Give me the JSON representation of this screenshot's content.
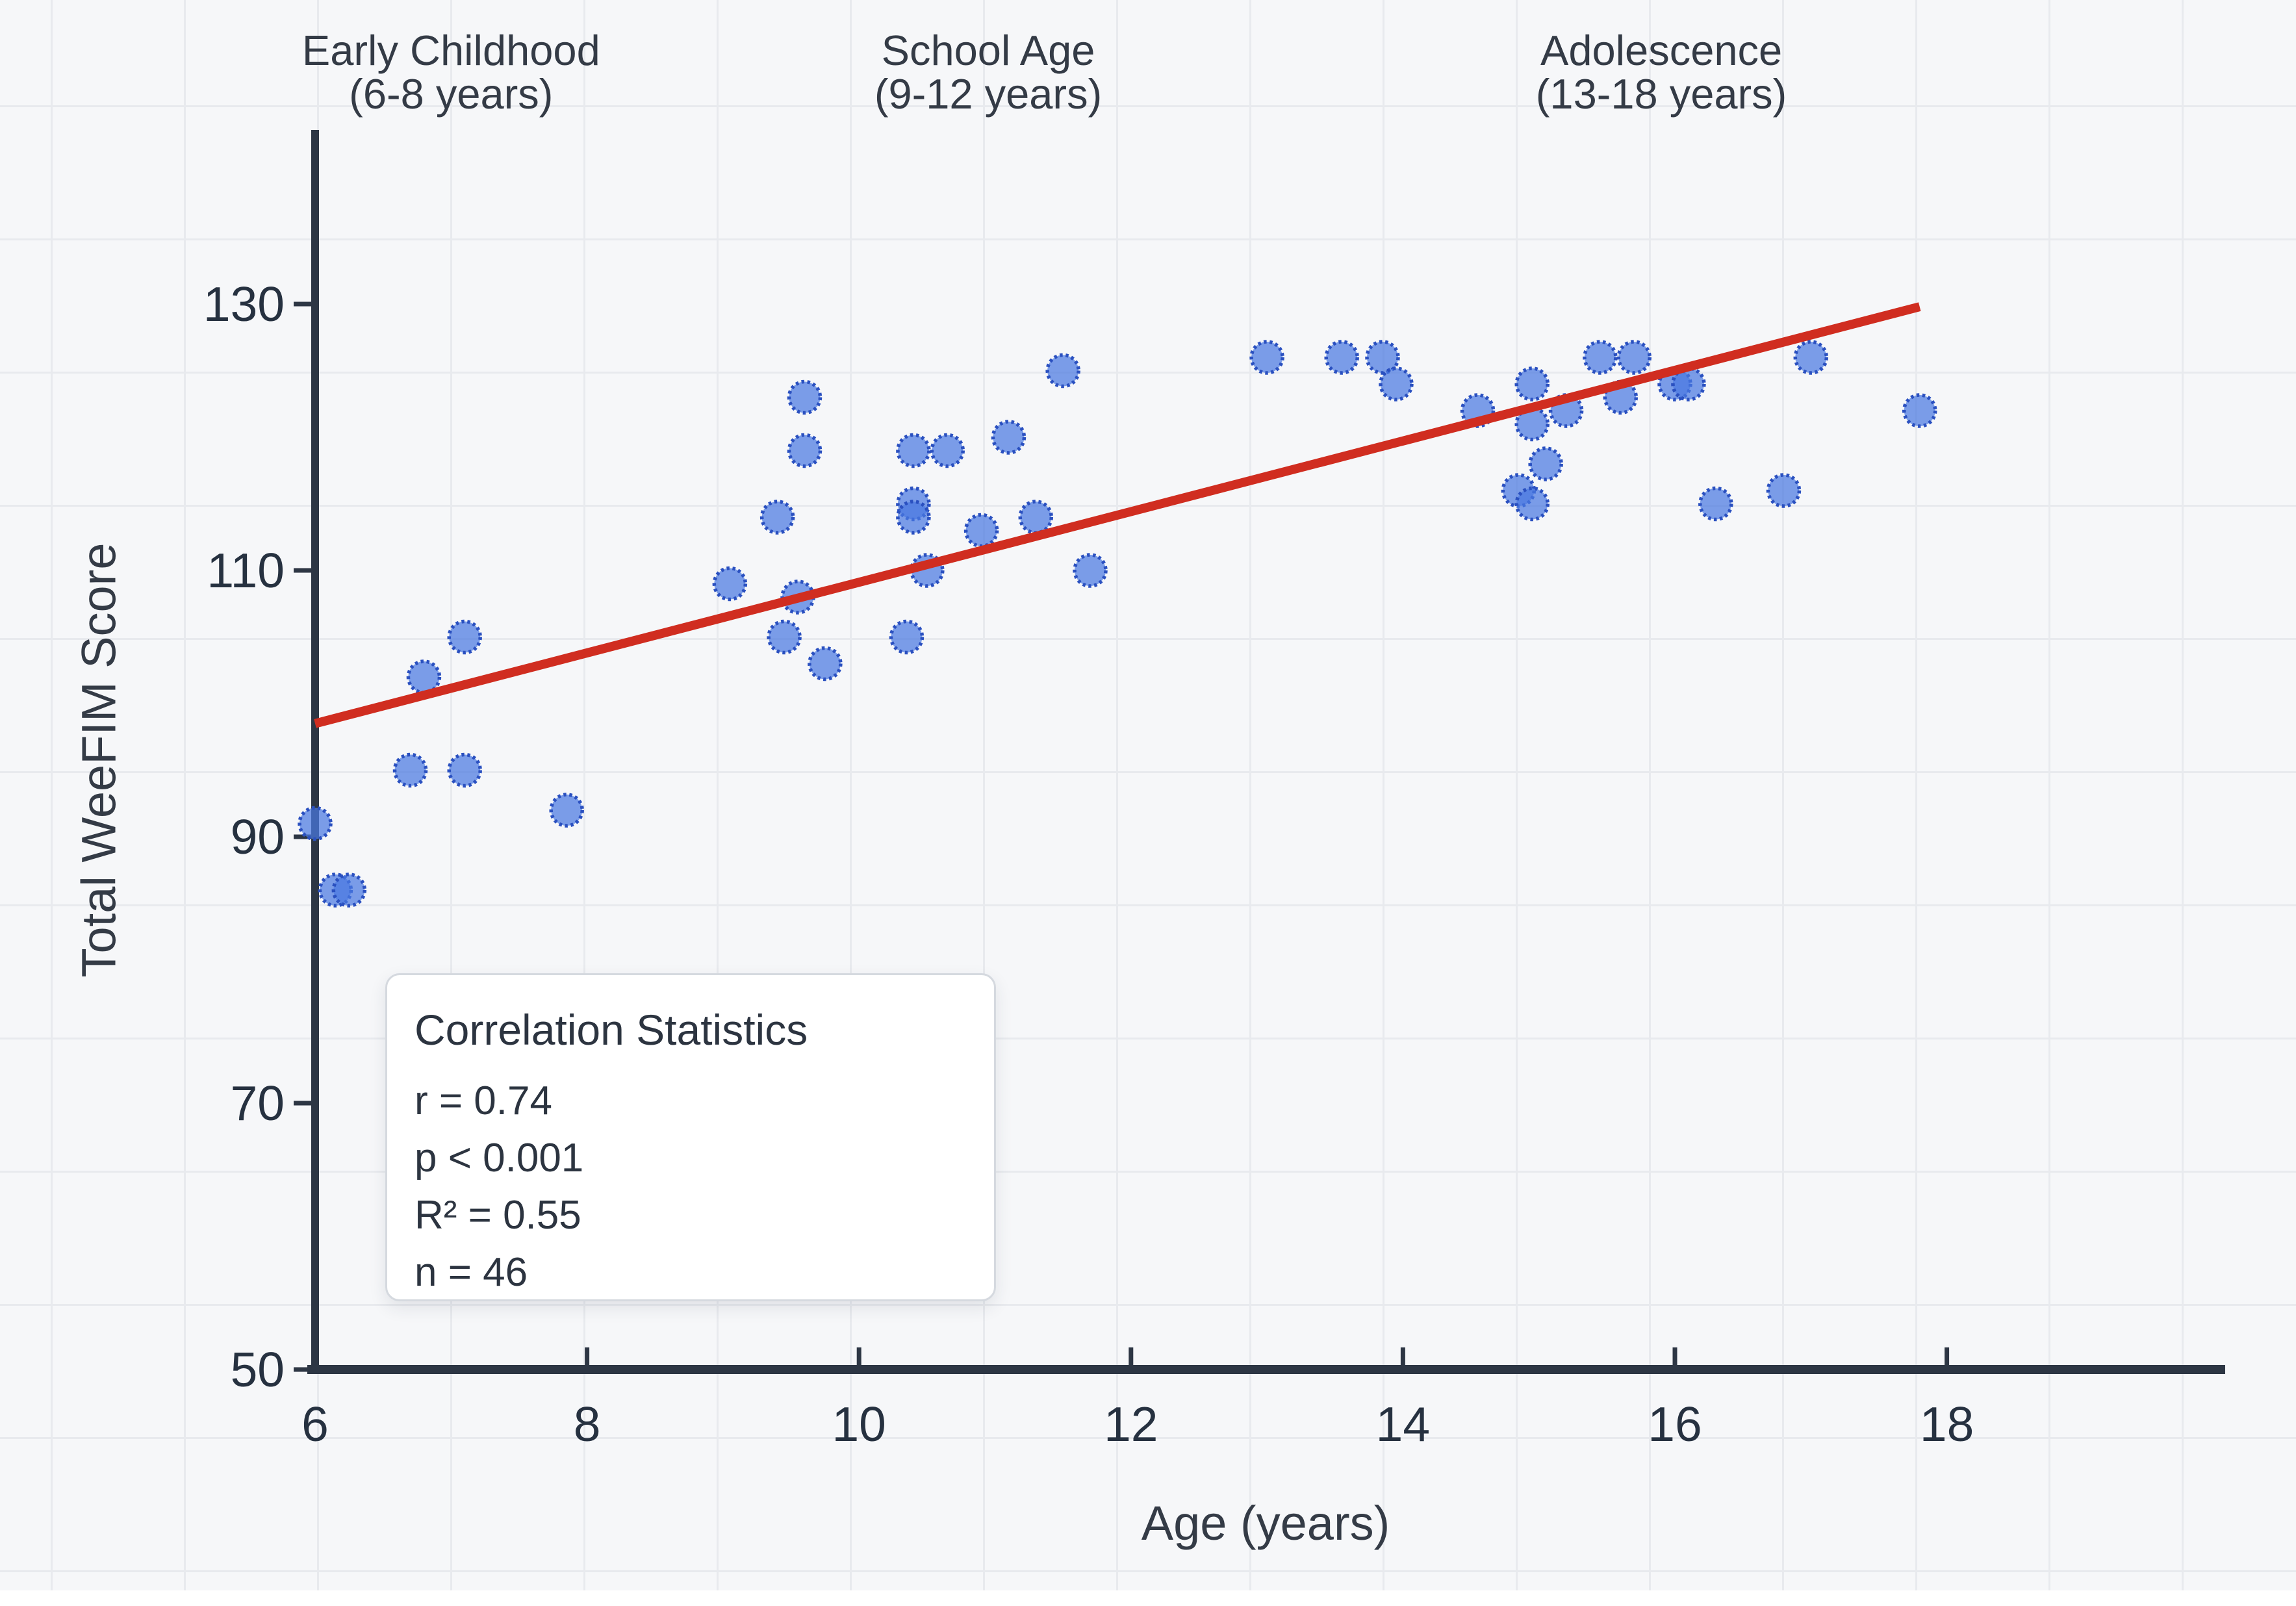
{
  "chart_data": {
    "type": "scatter",
    "xlabel": "Age (years)",
    "ylabel": "Total WeeFIM Score",
    "xlim": [
      6,
      20
    ],
    "ylim": [
      50,
      144
    ],
    "x_ticks": [
      6,
      8,
      10,
      12,
      14,
      16,
      18
    ],
    "y_ticks": [
      50,
      70,
      90,
      110,
      130
    ],
    "legend_position": "none",
    "grid": "decorative full-canvas light grid, not aligned to ticks",
    "age_groups": [
      {
        "line1": "Early Childhood",
        "line2": "(6-8 years)",
        "center_age": 7.0
      },
      {
        "line1": "School Age",
        "line2": "(9-12 years)",
        "center_age": 10.95
      },
      {
        "line1": "Adolescence",
        "line2": "(13-18 years)",
        "center_age": 15.9
      }
    ],
    "points": [
      {
        "age": 6.0,
        "score": 91
      },
      {
        "age": 6.15,
        "score": 86
      },
      {
        "age": 6.25,
        "score": 86
      },
      {
        "age": 6.7,
        "score": 95
      },
      {
        "age": 6.8,
        "score": 102
      },
      {
        "age": 7.1,
        "score": 105
      },
      {
        "age": 7.1,
        "score": 95
      },
      {
        "age": 7.85,
        "score": 92
      },
      {
        "age": 9.05,
        "score": 109
      },
      {
        "age": 9.4,
        "score": 114
      },
      {
        "age": 9.45,
        "score": 105
      },
      {
        "age": 9.55,
        "score": 108
      },
      {
        "age": 9.6,
        "score": 123
      },
      {
        "age": 9.6,
        "score": 119
      },
      {
        "age": 9.75,
        "score": 103
      },
      {
        "age": 10.35,
        "score": 105
      },
      {
        "age": 10.4,
        "score": 119
      },
      {
        "age": 10.65,
        "score": 119
      },
      {
        "age": 10.4,
        "score": 115
      },
      {
        "age": 10.4,
        "score": 114
      },
      {
        "age": 10.5,
        "score": 110
      },
      {
        "age": 10.9,
        "score": 113
      },
      {
        "age": 11.1,
        "score": 120
      },
      {
        "age": 11.3,
        "score": 114
      },
      {
        "age": 11.5,
        "score": 125
      },
      {
        "age": 11.7,
        "score": 110
      },
      {
        "age": 13.0,
        "score": 126
      },
      {
        "age": 13.55,
        "score": 126
      },
      {
        "age": 13.85,
        "score": 126
      },
      {
        "age": 13.95,
        "score": 124
      },
      {
        "age": 14.55,
        "score": 122
      },
      {
        "age": 14.95,
        "score": 124
      },
      {
        "age": 15.2,
        "score": 122
      },
      {
        "age": 14.95,
        "score": 121
      },
      {
        "age": 15.05,
        "score": 118
      },
      {
        "age": 14.85,
        "score": 116
      },
      {
        "age": 14.95,
        "score": 115
      },
      {
        "age": 15.45,
        "score": 126
      },
      {
        "age": 15.7,
        "score": 126
      },
      {
        "age": 15.6,
        "score": 123
      },
      {
        "age": 16.0,
        "score": 124
      },
      {
        "age": 16.1,
        "score": 124
      },
      {
        "age": 16.3,
        "score": 115
      },
      {
        "age": 16.8,
        "score": 116
      },
      {
        "age": 17.0,
        "score": 126
      },
      {
        "age": 17.8,
        "score": 122
      }
    ],
    "trendline": {
      "x1": 6.0,
      "y1": 98.5,
      "x2": 17.8,
      "y2": 129.8
    },
    "stats_box": {
      "title": "Correlation Statistics",
      "lines": [
        "r = 0.74",
        "p < 0.001",
        "R² = 0.55",
        "n = 46"
      ]
    },
    "colors": {
      "background": "#f6f7f9",
      "grid": "#e8eaee",
      "axis": "#2d3644",
      "text": "#343b46",
      "tick_text": "#263140",
      "point_fill": "#4a79e0",
      "point_stroke": "#2a50c0",
      "trendline": "#d02d20",
      "stats_border": "#d5d9df"
    }
  }
}
